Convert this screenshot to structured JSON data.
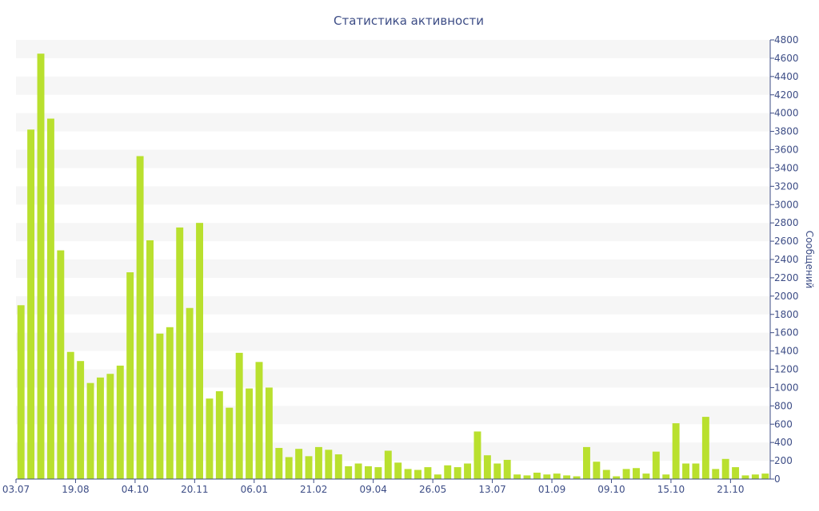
{
  "chart_data": {
    "type": "bar",
    "title": "Статистика активности",
    "ylabel": "Сообщений",
    "xlabel": "",
    "ylim": [
      0,
      4800
    ],
    "y_ticks": [
      0,
      200,
      400,
      600,
      800,
      1000,
      1200,
      1400,
      1600,
      1800,
      2000,
      2200,
      2400,
      2600,
      2800,
      3000,
      3200,
      3400,
      3600,
      3800,
      4000,
      4200,
      4400,
      4600,
      4800
    ],
    "x_tick_labels": [
      {
        "label": "03.07",
        "index": 0
      },
      {
        "label": "19.08",
        "index": 6
      },
      {
        "label": "04.10",
        "index": 12
      },
      {
        "label": "20.11",
        "index": 18
      },
      {
        "label": "06.01",
        "index": 24
      },
      {
        "label": "21.02",
        "index": 30
      },
      {
        "label": "09.04",
        "index": 36
      },
      {
        "label": "26.05",
        "index": 42
      },
      {
        "label": "13.07",
        "index": 48
      },
      {
        "label": "01.09",
        "index": 54
      },
      {
        "label": "09.10",
        "index": 60
      },
      {
        "label": "15.10",
        "index": 66
      },
      {
        "label": "21.10",
        "index": 72
      }
    ],
    "values": [
      1900,
      3820,
      4650,
      3940,
      2500,
      1390,
      1290,
      1050,
      1110,
      1150,
      1240,
      2260,
      3530,
      2610,
      1590,
      1660,
      2750,
      1870,
      2800,
      880,
      960,
      780,
      1380,
      990,
      1280,
      1000,
      340,
      240,
      330,
      250,
      350,
      320,
      270,
      140,
      170,
      140,
      130,
      310,
      180,
      110,
      100,
      130,
      50,
      150,
      130,
      170,
      520,
      260,
      170,
      210,
      50,
      40,
      70,
      50,
      60,
      40,
      30,
      350,
      190,
      100,
      30,
      110,
      120,
      60,
      300,
      50,
      610,
      170,
      170,
      680,
      110,
      220,
      130,
      40,
      50,
      60
    ],
    "grid": "alternating horizontal bands",
    "colors": {
      "bar": "#b9e02e",
      "text": "#3d4d86",
      "band": "#f6f6f6"
    }
  }
}
